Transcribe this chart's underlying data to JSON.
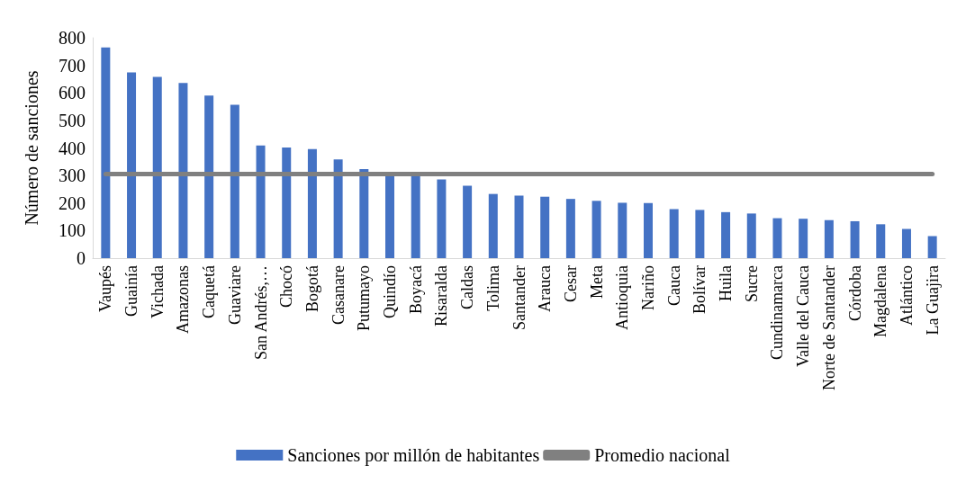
{
  "chart_data": {
    "type": "bar",
    "ylabel": "Número de sanciones",
    "categories": [
      "Vaupés",
      "Guainía",
      "Vichada",
      "Amazonas",
      "Caquetá",
      "Guaviare",
      "San Andrés,…",
      "Chocó",
      "Bogotá",
      "Casanare",
      "Putumayo",
      "Quindío",
      "Boyacá",
      "Risaralda",
      "Caldas",
      "Tolima",
      "Santander",
      "Arauca",
      "Cesar",
      "Meta",
      "Antioquia",
      "Nariño",
      "Cauca",
      "Bolívar",
      "Huila",
      "Sucre",
      "Cundinamarca",
      "Valle del Cauca",
      "Norte de Santander",
      "Córdoba",
      "Magdalena",
      "Atlántico",
      "La Guajira"
    ],
    "series": [
      {
        "name": "Sanciones por millón de habitantes",
        "color": "#4472c4",
        "values": [
          765,
          674,
          658,
          636,
          590,
          557,
          409,
          402,
          396,
          358,
          323,
          305,
          300,
          286,
          263,
          233,
          227,
          223,
          215,
          208,
          201,
          200,
          178,
          175,
          167,
          162,
          145,
          143,
          138,
          134,
          123,
          106,
          80
        ]
      },
      {
        "name": "Promedio nacional",
        "type": "line",
        "color": "#808080",
        "values": [
          305,
          305,
          305,
          305,
          305,
          305,
          305,
          305,
          305,
          305,
          305,
          305,
          305,
          305,
          305,
          305,
          305,
          305,
          305,
          305,
          305,
          305,
          305,
          305,
          305,
          305,
          305,
          305,
          305,
          305,
          305,
          305,
          305
        ]
      }
    ],
    "ylim": [
      0,
      800
    ],
    "yticks": [
      0,
      100,
      200,
      300,
      400,
      500,
      600,
      700,
      800
    ],
    "grid": false,
    "legend": "bottom"
  }
}
